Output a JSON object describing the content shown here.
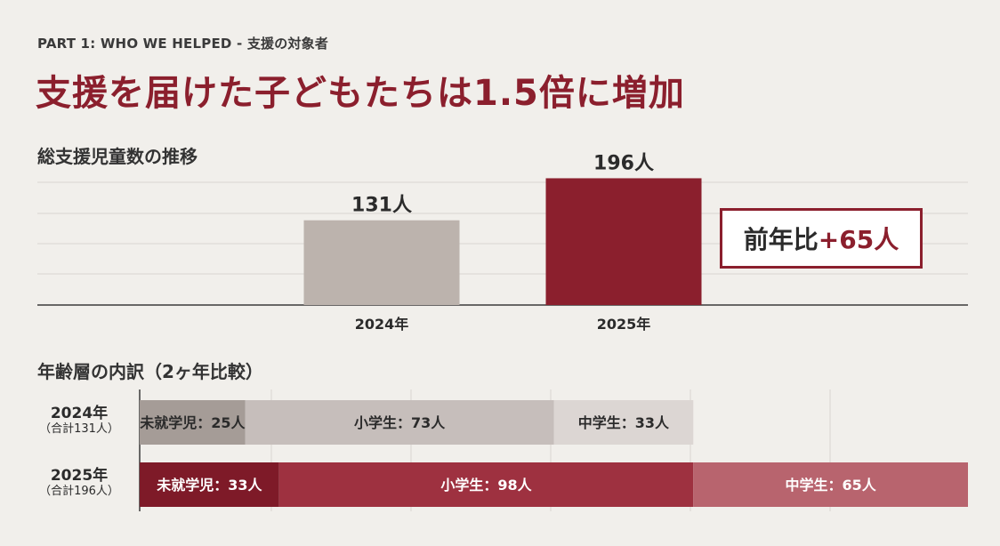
{
  "header": {
    "kicker": "PART 1: WHO WE HELPED - 支援の対象者",
    "headline": "支援を届けた子どもたちは1.5倍に増加"
  },
  "sections": {
    "total": "総支援児童数の推移",
    "breakdown": "年齢層の内訳（2ヶ年比較）"
  },
  "colors": {
    "accent": "#8b1f2d",
    "bar_2024": "#bcb3ad",
    "bar_2025": "#8b1f2d",
    "stack_2024": [
      "#a59c97",
      "#c6bebb",
      "#dcd6d3"
    ],
    "stack_2025": [
      "#7e1a28",
      "#9e3140",
      "#b8646e"
    ]
  },
  "yoy": {
    "prefix": "前年比",
    "value": "+65人"
  },
  "row_labels": [
    {
      "year": "2024年",
      "total": "（合計131人）"
    },
    {
      "year": "2025年",
      "total": "（合計196人）"
    }
  ],
  "chart_data": [
    {
      "type": "bar",
      "title": "総支援児童数の推移",
      "categories": [
        "2024年",
        "2025年"
      ],
      "values": [
        131,
        196
      ],
      "data_labels": [
        "131人",
        "196人"
      ],
      "ylim": [
        0,
        220
      ],
      "grid": true
    },
    {
      "type": "bar",
      "orientation": "horizontal-stacked",
      "title": "年齢層の内訳（2ヶ年比較）",
      "categories": [
        "2024年",
        "2025年"
      ],
      "totals": [
        131,
        196
      ],
      "series": [
        {
          "name": "未就学児",
          "values": [
            25,
            33
          ],
          "labels": [
            "未就学児：25人",
            "未就学児：33人"
          ]
        },
        {
          "name": "小学生",
          "values": [
            73,
            98
          ],
          "labels": [
            "小学生：73人",
            "小学生：98人"
          ]
        },
        {
          "name": "中学生",
          "values": [
            33,
            65
          ],
          "labels": [
            "中学生：33人",
            "中学生：65人"
          ]
        }
      ],
      "xlim": [
        0,
        196
      ],
      "grid": true
    }
  ]
}
